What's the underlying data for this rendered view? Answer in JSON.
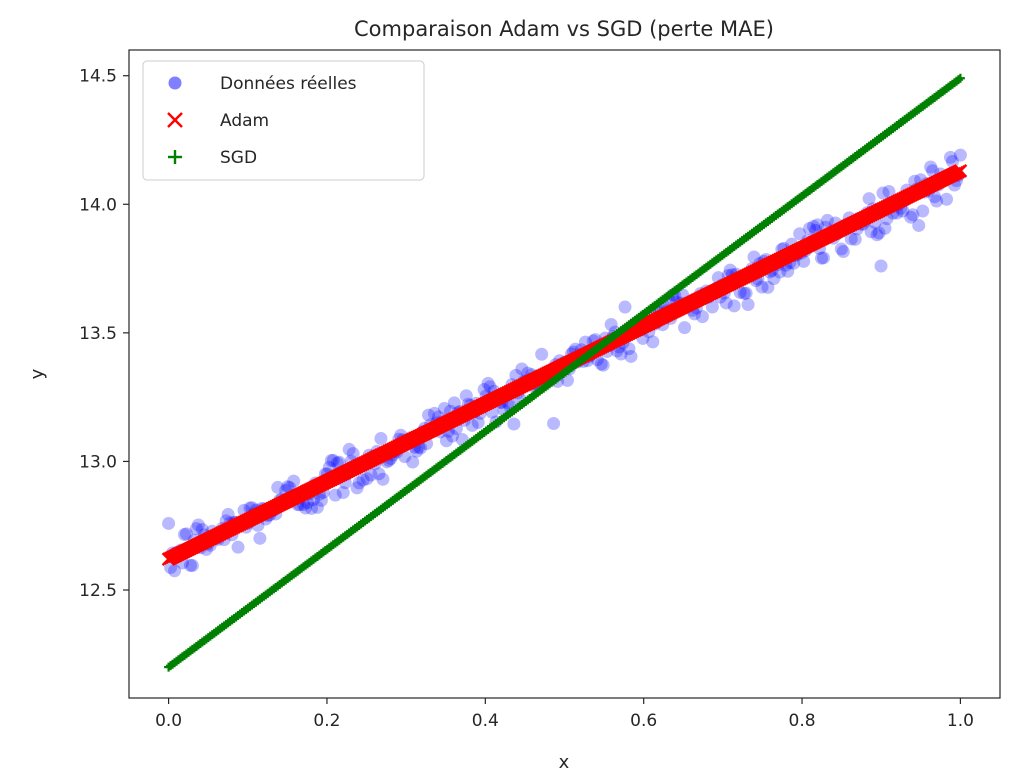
{
  "chart_data": {
    "type": "scatter",
    "title": "Comparaison Adam vs SGD (perte MAE)",
    "xlabel": "x",
    "ylabel": "y",
    "xlim": [
      -0.05,
      1.05
    ],
    "ylim": [
      12.08,
      14.6
    ],
    "xticks": [
      0.0,
      0.2,
      0.4,
      0.6,
      0.8,
      1.0
    ],
    "xtick_labels": [
      "0.0",
      "0.2",
      "0.4",
      "0.6",
      "0.8",
      "1.0"
    ],
    "yticks": [
      12.5,
      13.0,
      13.5,
      14.0,
      14.5
    ],
    "ytick_labels": [
      "12.5",
      "13.0",
      "13.5",
      "14.0",
      "14.5"
    ],
    "grid": false,
    "legend_position": "top-left",
    "x_range": [
      0.0,
      1.0
    ],
    "series": [
      {
        "name": "Données réelles",
        "marker": "circle",
        "color": "#0000ff",
        "opacity": 0.5,
        "line": {
          "intercept": 12.62,
          "slope": 1.5
        },
        "noise": 0.05
      },
      {
        "name": "Adam",
        "marker": "x",
        "color": "#ff0000",
        "line": {
          "intercept": 12.62,
          "slope": 1.51
        }
      },
      {
        "name": "SGD",
        "marker": "plus",
        "color": "#008000",
        "line": {
          "intercept": 12.2,
          "slope": 2.29
        }
      }
    ]
  }
}
